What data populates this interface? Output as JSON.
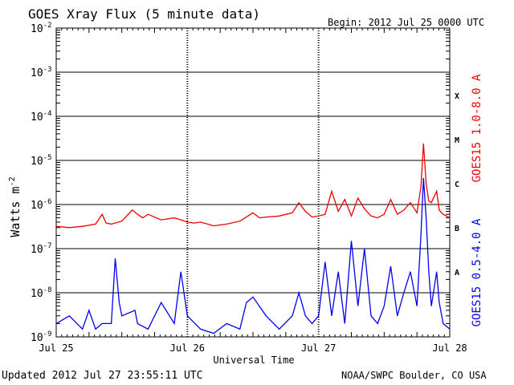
{
  "chart_data": {
    "type": "line",
    "title": "GOES Xray Flux (5 minute data)",
    "begin_label": "Begin:  2012 Jul 25 0000 UTC",
    "xlabel": "Universal Time",
    "ylabel": "Watts m-2",
    "ylabel_main": "Watts m",
    "ylabel_exp": "-2",
    "y_scale": "log",
    "ylim": [
      1e-09,
      0.01
    ],
    "xlim": [
      "2012-07-25 00:00",
      "2012-07-28 00:00"
    ],
    "grid": true,
    "x_tick_labels": [
      "Jul 25",
      "Jul 26",
      "Jul 27",
      "Jul 28"
    ],
    "y_tick_labels": [
      {
        "value": 0.01,
        "base": "10",
        "exp": "-2"
      },
      {
        "value": 0.001,
        "base": "10",
        "exp": "-3"
      },
      {
        "value": 0.0001,
        "base": "10",
        "exp": "-4"
      },
      {
        "value": 1e-05,
        "base": "10",
        "exp": "-5"
      },
      {
        "value": 1e-06,
        "base": "10",
        "exp": "-6"
      },
      {
        "value": 1e-07,
        "base": "10",
        "exp": "-7"
      },
      {
        "value": 1e-08,
        "base": "10",
        "exp": "-8"
      },
      {
        "value": 1e-09,
        "base": "10",
        "exp": "-9"
      }
    ],
    "flare_classes": [
      {
        "label": "X",
        "value": 0.0003
      },
      {
        "label": "M",
        "value": 3e-05
      },
      {
        "label": "C",
        "value": 3e-06
      },
      {
        "label": "B",
        "value": 3e-07
      },
      {
        "label": "A",
        "value": 3e-08
      }
    ],
    "series": [
      {
        "name": "GOES15 1.0-8.0 A",
        "color": "#ee0000",
        "x": [
          0,
          0.1,
          0.2,
          0.3,
          0.35,
          0.38,
          0.42,
          0.5,
          0.58,
          0.62,
          0.66,
          0.7,
          0.8,
          0.9,
          0.95,
          1.0,
          1.05,
          1.1,
          1.2,
          1.3,
          1.4,
          1.5,
          1.55,
          1.6,
          1.7,
          1.8,
          1.85,
          1.9,
          1.95,
          2.0,
          2.05,
          2.1,
          2.15,
          2.2,
          2.25,
          2.3,
          2.35,
          2.4,
          2.45,
          2.5,
          2.55,
          2.6,
          2.65,
          2.7,
          2.75,
          2.78,
          2.8,
          2.82,
          2.84,
          2.86,
          2.9,
          2.92,
          2.95,
          3.0
        ],
        "y": [
          3.2e-07,
          3e-07,
          3.2e-07,
          3.6e-07,
          6e-07,
          3.8e-07,
          3.6e-07,
          4.2e-07,
          7.5e-07,
          6e-07,
          5e-07,
          6e-07,
          4.5e-07,
          5e-07,
          4.5e-07,
          4e-07,
          3.8e-07,
          4e-07,
          3.3e-07,
          3.6e-07,
          4.2e-07,
          6.5e-07,
          5e-07,
          5.2e-07,
          5.5e-07,
          6.5e-07,
          1.1e-06,
          7e-07,
          5.2e-07,
          5.5e-07,
          6e-07,
          2e-06,
          7e-07,
          1.3e-06,
          5.5e-07,
          1.4e-06,
          8e-07,
          5.5e-07,
          5e-07,
          6e-07,
          1.3e-06,
          6e-07,
          7.5e-07,
          1.1e-06,
          6.5e-07,
          2.5e-06,
          2.4e-05,
          3e-06,
          1.2e-06,
          1.1e-06,
          2e-06,
          7.5e-07,
          6e-07,
          5e-07
        ]
      },
      {
        "name": "GOES15 0.5-4.0 A",
        "color": "#0000ee",
        "x": [
          0,
          0.1,
          0.2,
          0.25,
          0.3,
          0.35,
          0.42,
          0.45,
          0.48,
          0.5,
          0.6,
          0.62,
          0.7,
          0.8,
          0.9,
          0.95,
          1.0,
          1.1,
          1.2,
          1.3,
          1.4,
          1.45,
          1.5,
          1.6,
          1.7,
          1.8,
          1.85,
          1.9,
          1.95,
          2.0,
          2.05,
          2.1,
          2.15,
          2.2,
          2.25,
          2.3,
          2.35,
          2.4,
          2.45,
          2.5,
          2.55,
          2.6,
          2.65,
          2.7,
          2.75,
          2.78,
          2.8,
          2.82,
          2.84,
          2.86,
          2.9,
          2.92,
          2.95,
          3.0
        ],
        "y": [
          2e-09,
          3e-09,
          1.5e-09,
          4e-09,
          1.5e-09,
          2e-09,
          2e-09,
          6e-08,
          6e-09,
          3e-09,
          4e-09,
          2e-09,
          1.5e-09,
          6e-09,
          2e-09,
          3e-08,
          3e-09,
          1.5e-09,
          1.2e-09,
          2e-09,
          1.5e-09,
          6e-09,
          8e-09,
          3e-09,
          1.5e-09,
          3e-09,
          1e-08,
          3e-09,
          2e-09,
          3e-09,
          5e-08,
          3e-09,
          3e-08,
          2e-09,
          1.5e-07,
          5e-09,
          1e-07,
          3e-09,
          2e-09,
          5e-09,
          4e-08,
          3e-09,
          1e-08,
          3e-08,
          5e-09,
          2e-07,
          4e-06,
          5e-07,
          3e-08,
          5e-09,
          3e-08,
          6e-09,
          2e-09,
          1.5e-09
        ]
      }
    ]
  },
  "footer": {
    "updated": "Updated 2012 Jul 27 23:55:11 UTC",
    "credit": "NOAA/SWPC Boulder, CO USA"
  }
}
